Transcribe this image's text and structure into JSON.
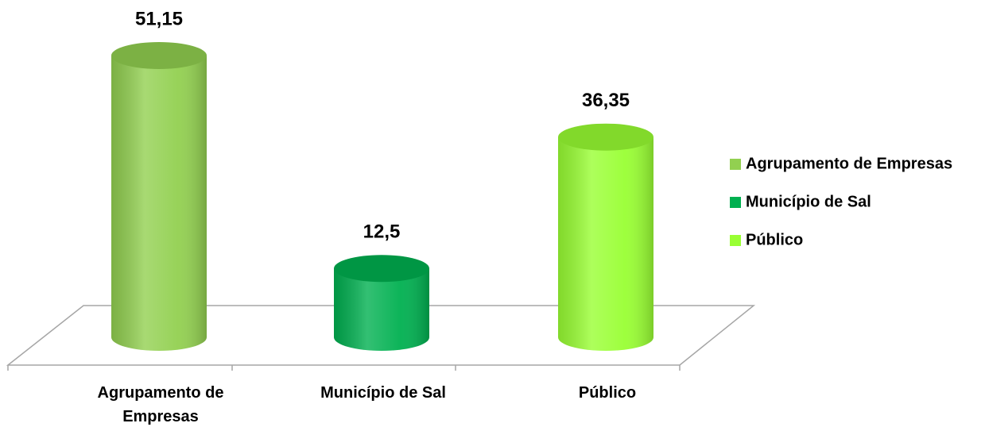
{
  "chart_data": {
    "type": "bar",
    "categories": [
      "Agrupamento de Empresas",
      "Município de Sal",
      "Público"
    ],
    "values": [
      51.15,
      12.5,
      36.35
    ],
    "value_labels": [
      "51,15",
      "12,5",
      "36,35"
    ],
    "colors": [
      "#92d050",
      "#00b050",
      "#99ff33"
    ],
    "legend": "right"
  }
}
